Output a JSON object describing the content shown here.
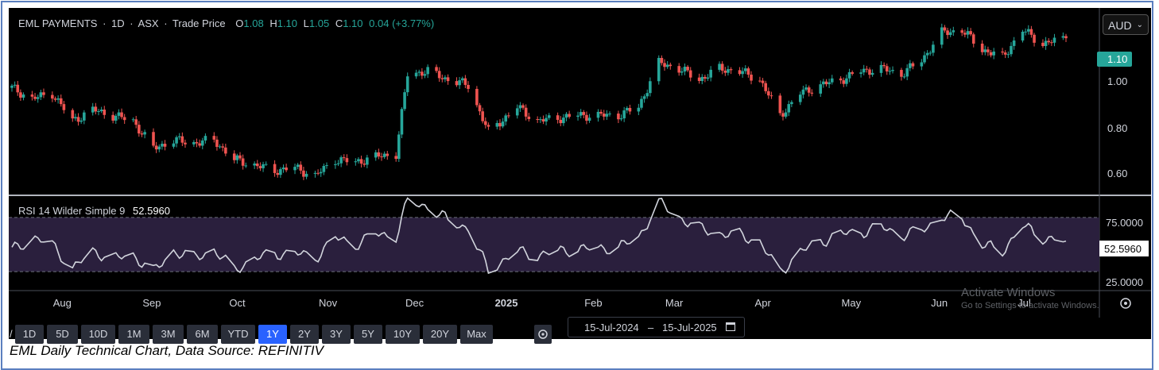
{
  "header": {
    "symbol": "EML PAYMENTS",
    "interval": "1D",
    "exchange": "ASX",
    "price_type": "Trade Price",
    "ohlc": [
      {
        "label": "O",
        "value": "1.08"
      },
      {
        "label": "H",
        "value": "1.10"
      },
      {
        "label": "L",
        "value": "1.05"
      },
      {
        "label": "C",
        "value": "1.10"
      }
    ],
    "change": "0.04 (+3.77%)"
  },
  "currency": "AUD",
  "rsi_header": {
    "label": "RSI 14 Wilder Simple 9",
    "value": "52.5960"
  },
  "price_axis": {
    "ticks": [
      "1.00",
      "0.80",
      "0.60"
    ],
    "last_label": "1.10"
  },
  "rsi_axis": {
    "ticks": [
      "75.0000",
      "25.0000"
    ],
    "last_label": "52.5960"
  },
  "time_axis": [
    "Aug",
    "Sep",
    "Oct",
    "Nov",
    "Dec",
    "2025",
    "Feb",
    "Mar",
    "Apr",
    "May",
    "Jun",
    "Jul"
  ],
  "ranges": [
    "1D",
    "5D",
    "10D",
    "1M",
    "3M",
    "6M",
    "YTD",
    "1Y",
    "2Y",
    "3Y",
    "5Y",
    "10Y",
    "20Y",
    "Max"
  ],
  "active_range": "1Y",
  "date_range": {
    "from": "15-Jul-2024",
    "to": "15-Jul-2025"
  },
  "watermark": {
    "line1": "Activate Windows",
    "line2": "Go to Settings to activate Windows."
  },
  "caption": "EML Daily Technical Chart, Data Source: REFINITIV",
  "colors": {
    "up": "#26a69a",
    "down": "#ef5350",
    "rsi_line": "#d1d4dc",
    "rsi_band": "#2a1f3d",
    "active": "#2962ff",
    "frame": "#5b7fbf"
  },
  "icons": {
    "settings": "gear-icon",
    "calendar": "calendar-icon",
    "axis_settings": "gear-icon"
  },
  "chart_data": [
    {
      "type": "candlestick",
      "title": "EML PAYMENTS · 1D · ASX · Trade Price",
      "x_range": [
        "2024-07-15",
        "2025-07-15"
      ],
      "ylim": [
        0.53,
        1.21
      ],
      "y_ticks": [
        0.6,
        0.8,
        1.0
      ],
      "grid": false,
      "last_close": 1.1,
      "close_points": [
        [
          "2024-07-15",
          0.92
        ],
        [
          "2024-07-22",
          0.88
        ],
        [
          "2024-07-29",
          0.9
        ],
        [
          "2024-08-05",
          0.8
        ],
        [
          "2024-08-12",
          0.84
        ],
        [
          "2024-08-19",
          0.82
        ],
        [
          "2024-08-26",
          0.8
        ],
        [
          "2024-09-02",
          0.7
        ],
        [
          "2024-09-09",
          0.73
        ],
        [
          "2024-09-16",
          0.72
        ],
        [
          "2024-09-23",
          0.73
        ],
        [
          "2024-09-30",
          0.66
        ],
        [
          "2024-10-07",
          0.64
        ],
        [
          "2024-10-14",
          0.62
        ],
        [
          "2024-10-21",
          0.63
        ],
        [
          "2024-10-28",
          0.6
        ],
        [
          "2024-11-04",
          0.66
        ],
        [
          "2024-11-11",
          0.65
        ],
        [
          "2024-11-18",
          0.67
        ],
        [
          "2024-11-25",
          0.68
        ],
        [
          "2024-11-29",
          0.97
        ],
        [
          "2024-12-06",
          0.98
        ],
        [
          "2024-12-13",
          0.95
        ],
        [
          "2024-12-20",
          0.93
        ],
        [
          "2024-12-27",
          0.76
        ],
        [
          "2025-01-06",
          0.85
        ],
        [
          "2025-01-13",
          0.8
        ],
        [
          "2025-01-20",
          0.81
        ],
        [
          "2025-01-27",
          0.82
        ],
        [
          "2025-02-03",
          0.82
        ],
        [
          "2025-02-10",
          0.82
        ],
        [
          "2025-02-17",
          0.85
        ],
        [
          "2025-02-24",
          1.01
        ],
        [
          "2025-03-03",
          0.99
        ],
        [
          "2025-03-10",
          0.95
        ],
        [
          "2025-03-17",
          0.99
        ],
        [
          "2025-03-24",
          0.98
        ],
        [
          "2025-03-31",
          0.95
        ],
        [
          "2025-04-07",
          0.82
        ],
        [
          "2025-04-14",
          0.9
        ],
        [
          "2025-04-21",
          0.93
        ],
        [
          "2025-04-28",
          0.95
        ],
        [
          "2025-05-05",
          0.98
        ],
        [
          "2025-05-12",
          0.99
        ],
        [
          "2025-05-19",
          0.97
        ],
        [
          "2025-05-26",
          1.02
        ],
        [
          "2025-06-02",
          1.12
        ],
        [
          "2025-06-09",
          1.13
        ],
        [
          "2025-06-16",
          1.06
        ],
        [
          "2025-06-23",
          1.03
        ],
        [
          "2025-06-30",
          1.13
        ],
        [
          "2025-07-07",
          1.08
        ],
        [
          "2025-07-15",
          1.1
        ]
      ]
    },
    {
      "type": "line",
      "title": "RSI 14 Wilder Simple 9",
      "x_range": [
        "2024-07-15",
        "2025-07-15"
      ],
      "ylim": [
        16,
        84
      ],
      "y_ticks": [
        25,
        75
      ],
      "band": [
        30,
        70
      ],
      "last_value": 52.596,
      "points": [
        [
          "2024-07-15",
          46
        ],
        [
          "2024-07-22",
          55
        ],
        [
          "2024-07-29",
          50
        ],
        [
          "2024-08-05",
          32
        ],
        [
          "2024-08-12",
          45
        ],
        [
          "2024-08-19",
          40
        ],
        [
          "2024-08-26",
          42
        ],
        [
          "2024-09-02",
          30
        ],
        [
          "2024-09-09",
          45
        ],
        [
          "2024-09-16",
          40
        ],
        [
          "2024-09-23",
          46
        ],
        [
          "2024-09-30",
          31
        ],
        [
          "2024-10-07",
          40
        ],
        [
          "2024-10-14",
          43
        ],
        [
          "2024-10-21",
          44
        ],
        [
          "2024-10-28",
          40
        ],
        [
          "2024-11-04",
          55
        ],
        [
          "2024-11-11",
          50
        ],
        [
          "2024-11-18",
          58
        ],
        [
          "2024-11-25",
          56
        ],
        [
          "2024-11-29",
          82
        ],
        [
          "2024-12-06",
          78
        ],
        [
          "2024-12-13",
          68
        ],
        [
          "2024-12-20",
          62
        ],
        [
          "2024-12-27",
          31
        ],
        [
          "2025-01-06",
          45
        ],
        [
          "2025-01-13",
          42
        ],
        [
          "2025-01-20",
          45
        ],
        [
          "2025-01-27",
          47
        ],
        [
          "2025-02-03",
          47
        ],
        [
          "2025-02-10",
          48
        ],
        [
          "2025-02-17",
          55
        ],
        [
          "2025-02-24",
          81
        ],
        [
          "2025-03-03",
          70
        ],
        [
          "2025-03-10",
          62
        ],
        [
          "2025-03-17",
          58
        ],
        [
          "2025-03-24",
          57
        ],
        [
          "2025-03-31",
          52
        ],
        [
          "2025-04-07",
          29
        ],
        [
          "2025-04-14",
          45
        ],
        [
          "2025-04-21",
          52
        ],
        [
          "2025-04-28",
          58
        ],
        [
          "2025-05-05",
          59
        ],
        [
          "2025-05-12",
          63
        ],
        [
          "2025-05-19",
          57
        ],
        [
          "2025-05-26",
          60
        ],
        [
          "2025-06-02",
          71
        ],
        [
          "2025-06-09",
          70
        ],
        [
          "2025-06-16",
          50
        ],
        [
          "2025-06-23",
          45
        ],
        [
          "2025-06-30",
          64
        ],
        [
          "2025-07-07",
          55
        ],
        [
          "2025-07-15",
          52.6
        ]
      ]
    }
  ]
}
